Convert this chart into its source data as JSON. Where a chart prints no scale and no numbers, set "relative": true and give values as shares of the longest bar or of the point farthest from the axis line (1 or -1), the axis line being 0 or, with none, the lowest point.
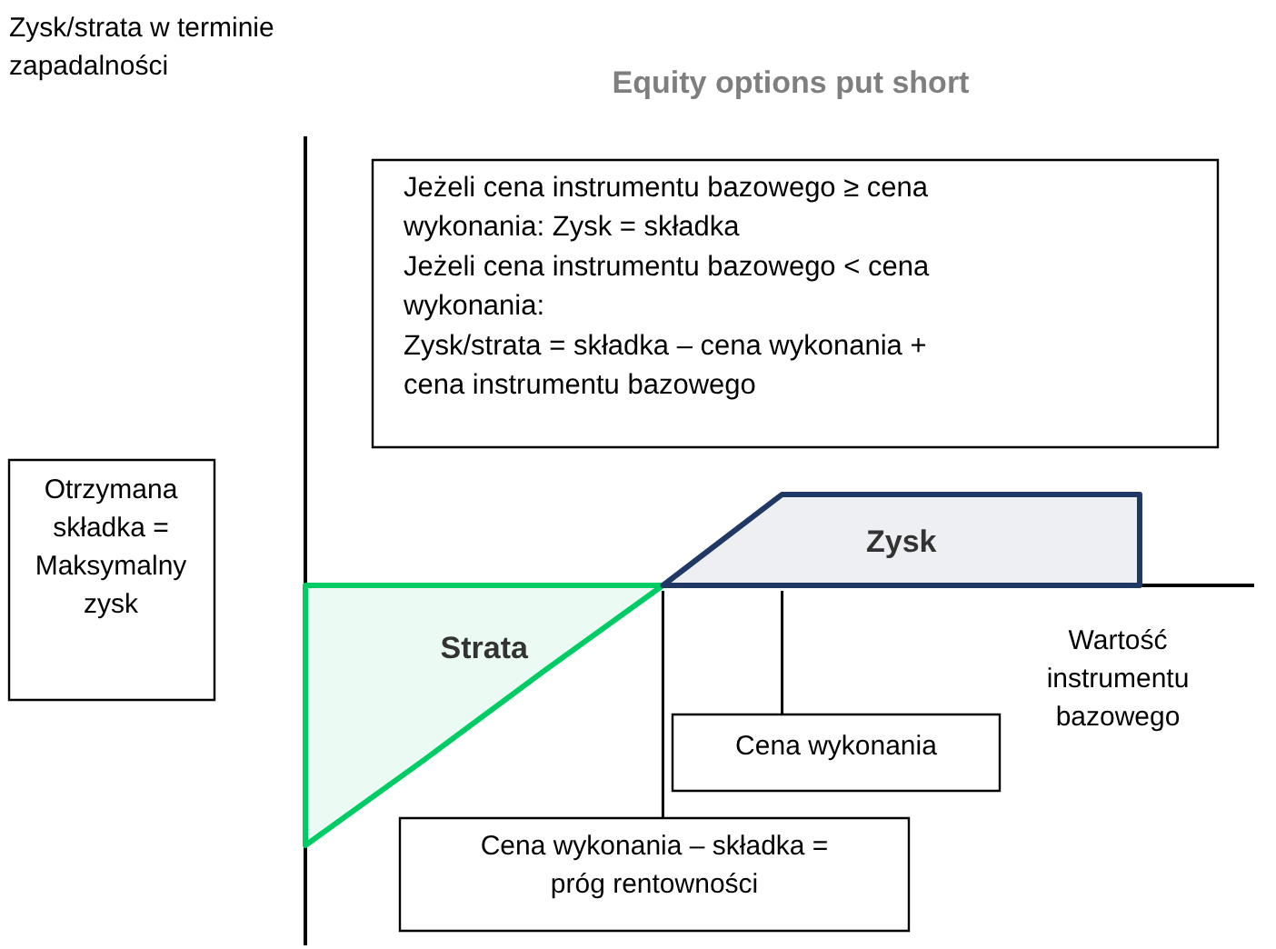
{
  "chart_data": {
    "type": "area",
    "relative": true,
    "title": "Equity options put short",
    "xlabel": "Wartość instrumentu bazowego",
    "categories": [
      null,
      null,
      null,
      null,
      null,
      null,
      null,
      null
    ],
    "series": [
      {
        "name": "Strata",
        "color": "#00cc66",
        "values": [
          -1,
          -0.67,
          -0.33,
          0,
          null,
          null,
          null,
          null
        ]
      },
      {
        "name": "Zysk",
        "color": "#1f3864",
        "values": [
          null,
          null,
          null,
          0,
          0.35,
          0.35,
          0.35,
          0.35
        ]
      }
    ],
    "annotations": [
      "Jeżeli cena instrumentu bazowego ≥ cena wykonania: Zysk = składka\nJeżeli cena instrumentu bazowego < cena wykonania:\nZysk/strata = składka – cena wykonania + cena instrumentu bazowego",
      "Otrzymana składka = Maksymalny zysk",
      "Cena wykonania",
      "Cena wykonania – składka = próg rentowności",
      "Zysk/strata w terminie zapadalności"
    ]
  }
}
